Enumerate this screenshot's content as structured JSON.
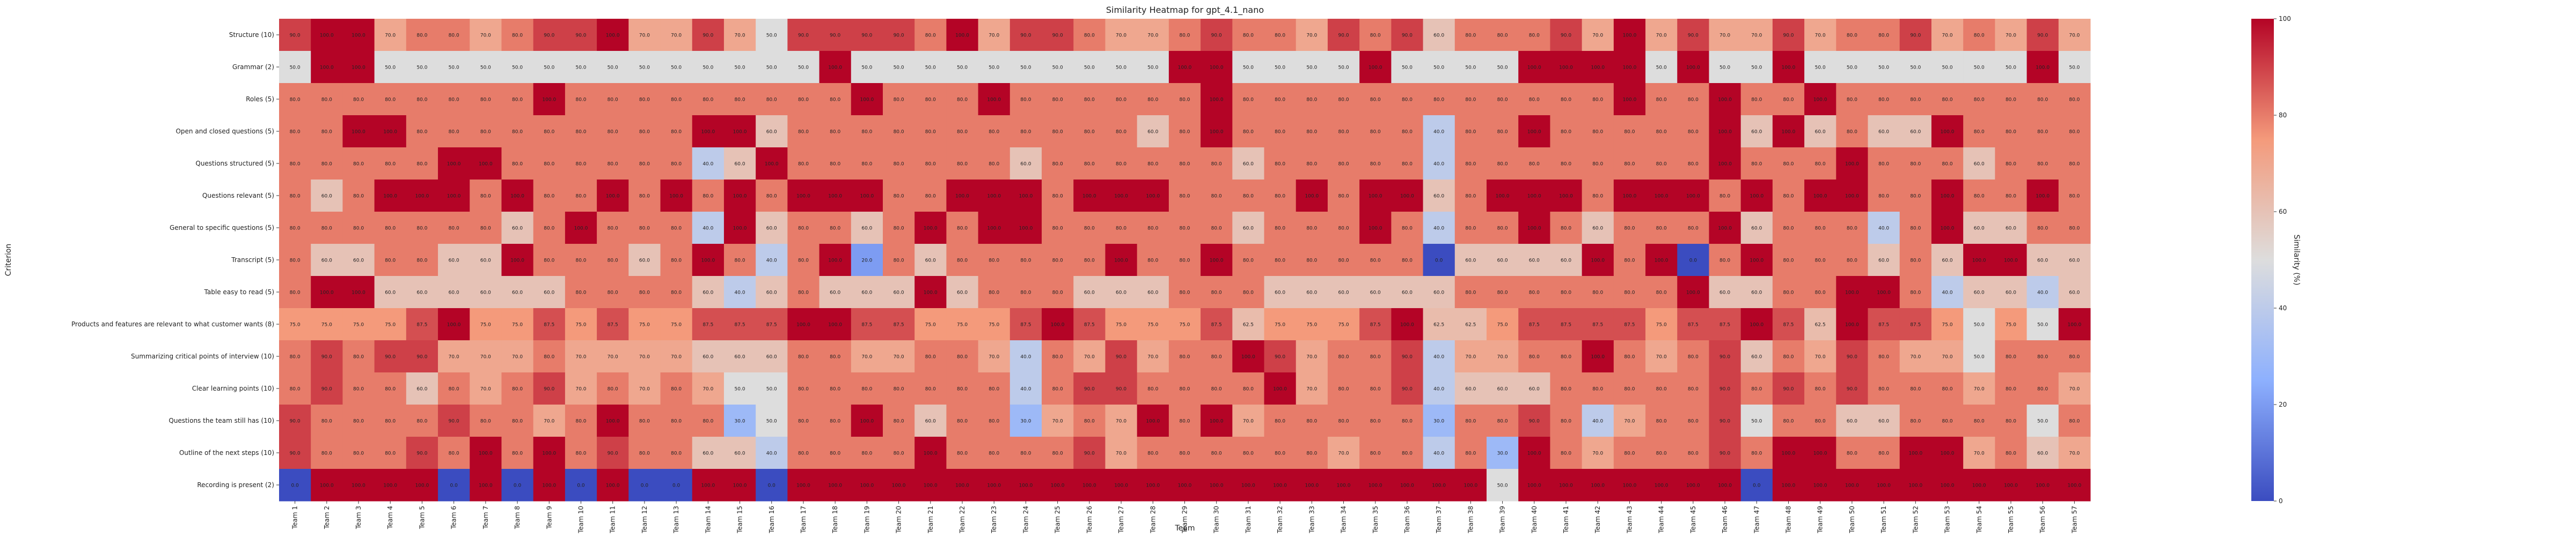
{
  "chart_data": {
    "type": "heatmap",
    "title": "Similarity Heatmap for gpt_4.1_nano",
    "xlabel": "Team",
    "ylabel": "Criterion",
    "colorbar_label": "Similarity (%)",
    "colorbar_ticks": [
      0,
      20,
      40,
      60,
      80,
      100
    ],
    "vmin": 0,
    "vmax": 100,
    "colormap": "coolwarm",
    "colors": {
      "low": "#3b4cc0",
      "mid": "#dddddd",
      "high": "#b40426"
    },
    "x": [
      "Team 1",
      "Team 2",
      "Team 3",
      "Team 4",
      "Team 5",
      "Team 6",
      "Team 7",
      "Team 8",
      "Team 9",
      "Team 10",
      "Team 11",
      "Team 12",
      "Team 13",
      "Team 14",
      "Team 15",
      "Team 16",
      "Team 17",
      "Team 18",
      "Team 19",
      "Team 20",
      "Team 21",
      "Team 22",
      "Team 23",
      "Team 24",
      "Team 25",
      "Team 26",
      "Team 27",
      "Team 28",
      "Team 29",
      "Team 30",
      "Team 31",
      "Team 32",
      "Team 33",
      "Team 34",
      "Team 35",
      "Team 36",
      "Team 37",
      "Team 38",
      "Team 39",
      "Team 40",
      "Team 41",
      "Team 42",
      "Team 43",
      "Team 44",
      "Team 45",
      "Team 46",
      "Team 47",
      "Team 48",
      "Team 49",
      "Team 50",
      "Team 51",
      "Team 52",
      "Team 53",
      "Team 54",
      "Team 55",
      "Team 56",
      "Team 57"
    ],
    "y": [
      "Structure (10)",
      "Grammar (2)",
      "Roles (5)",
      "Open and closed questions (5)",
      "Questions structured (5)",
      "Questions relevant (5)",
      "General to specific questions (5)",
      "Transcript (5)",
      "Table easy to read (5)",
      "Products and features are relevant to what customer wants (8)",
      "Summarizing critical points of interview (10)",
      "Clear learning points (10)",
      "Questions the team still has (10)",
      "Outline of the next steps (10)",
      "Recording is present (2)"
    ],
    "values": [
      [
        90.0,
        100.0,
        100.0,
        70.0,
        80.0,
        80.0,
        70.0,
        80.0,
        90.0,
        90.0,
        100.0,
        70.0,
        70.0,
        90.0,
        70.0,
        50.0,
        90.0,
        90.0,
        90.0,
        90.0,
        80.0,
        100.0,
        70.0,
        90.0,
        90.0,
        80.0,
        70.0,
        70.0,
        80.0,
        90.0,
        80.0,
        80.0,
        70.0,
        90.0,
        80.0,
        90.0,
        60.0,
        80.0,
        80.0,
        80.0,
        90.0,
        70.0,
        100.0,
        70.0,
        90.0,
        70.0,
        70.0,
        90.0,
        70.0,
        80.0,
        80.0,
        90.0,
        70.0,
        80.0,
        70.0,
        90.0,
        70.0
      ],
      [
        50.0,
        100.0,
        100.0,
        50.0,
        50.0,
        50.0,
        50.0,
        50.0,
        50.0,
        50.0,
        50.0,
        50.0,
        50.0,
        50.0,
        50.0,
        50.0,
        50.0,
        100.0,
        50.0,
        50.0,
        50.0,
        50.0,
        50.0,
        50.0,
        50.0,
        50.0,
        50.0,
        50.0,
        100.0,
        100.0,
        50.0,
        50.0,
        50.0,
        50.0,
        100.0,
        50.0,
        50.0,
        50.0,
        50.0,
        100.0,
        100.0,
        100.0,
        100.0,
        50.0,
        100.0,
        50.0,
        50.0,
        100.0,
        50.0,
        50.0,
        50.0,
        50.0,
        50.0,
        50.0,
        50.0,
        100.0,
        50.0
      ],
      [
        80.0,
        80.0,
        80.0,
        80.0,
        80.0,
        80.0,
        80.0,
        80.0,
        100.0,
        80.0,
        80.0,
        80.0,
        80.0,
        80.0,
        80.0,
        80.0,
        80.0,
        80.0,
        100.0,
        80.0,
        80.0,
        80.0,
        100.0,
        80.0,
        80.0,
        80.0,
        80.0,
        80.0,
        80.0,
        100.0,
        80.0,
        80.0,
        80.0,
        80.0,
        80.0,
        80.0,
        80.0,
        80.0,
        80.0,
        80.0,
        80.0,
        80.0,
        100.0,
        80.0,
        80.0,
        100.0,
        80.0,
        80.0,
        100.0,
        80.0,
        80.0,
        80.0,
        80.0,
        80.0,
        80.0,
        80.0,
        80.0
      ],
      [
        80.0,
        80.0,
        100.0,
        100.0,
        80.0,
        80.0,
        80.0,
        80.0,
        80.0,
        80.0,
        80.0,
        80.0,
        80.0,
        100.0,
        100.0,
        60.0,
        80.0,
        80.0,
        80.0,
        80.0,
        80.0,
        80.0,
        80.0,
        80.0,
        80.0,
        80.0,
        80.0,
        60.0,
        80.0,
        100.0,
        80.0,
        80.0,
        80.0,
        80.0,
        80.0,
        80.0,
        40.0,
        80.0,
        80.0,
        100.0,
        80.0,
        80.0,
        80.0,
        80.0,
        80.0,
        100.0,
        60.0,
        100.0,
        60.0,
        80.0,
        60.0,
        60.0,
        100.0,
        80.0,
        80.0,
        80.0,
        80.0
      ],
      [
        80.0,
        80.0,
        80.0,
        80.0,
        80.0,
        100.0,
        100.0,
        80.0,
        80.0,
        80.0,
        80.0,
        80.0,
        80.0,
        40.0,
        60.0,
        100.0,
        80.0,
        80.0,
        80.0,
        80.0,
        80.0,
        80.0,
        80.0,
        60.0,
        80.0,
        80.0,
        80.0,
        80.0,
        80.0,
        80.0,
        60.0,
        80.0,
        80.0,
        80.0,
        80.0,
        80.0,
        40.0,
        80.0,
        80.0,
        80.0,
        80.0,
        80.0,
        80.0,
        80.0,
        80.0,
        100.0,
        80.0,
        80.0,
        80.0,
        100.0,
        80.0,
        80.0,
        80.0,
        60.0,
        80.0,
        80.0,
        80.0
      ],
      [
        80.0,
        60.0,
        80.0,
        100.0,
        100.0,
        100.0,
        80.0,
        100.0,
        80.0,
        80.0,
        100.0,
        80.0,
        100.0,
        80.0,
        100.0,
        80.0,
        100.0,
        100.0,
        100.0,
        80.0,
        80.0,
        100.0,
        100.0,
        100.0,
        80.0,
        100.0,
        100.0,
        100.0,
        80.0,
        80.0,
        80.0,
        80.0,
        100.0,
        80.0,
        100.0,
        100.0,
        60.0,
        80.0,
        100.0,
        100.0,
        100.0,
        80.0,
        100.0,
        100.0,
        100.0,
        80.0,
        100.0,
        80.0,
        100.0,
        100.0,
        80.0,
        80.0,
        100.0,
        80.0,
        80.0,
        100.0,
        80.0
      ],
      [
        80.0,
        80.0,
        80.0,
        80.0,
        80.0,
        80.0,
        80.0,
        60.0,
        80.0,
        100.0,
        80.0,
        80.0,
        80.0,
        40.0,
        100.0,
        60.0,
        80.0,
        80.0,
        60.0,
        80.0,
        100.0,
        80.0,
        100.0,
        100.0,
        80.0,
        80.0,
        80.0,
        80.0,
        80.0,
        80.0,
        60.0,
        80.0,
        80.0,
        80.0,
        100.0,
        80.0,
        40.0,
        80.0,
        80.0,
        100.0,
        80.0,
        60.0,
        80.0,
        80.0,
        80.0,
        100.0,
        60.0,
        80.0,
        80.0,
        80.0,
        40.0,
        80.0,
        100.0,
        60.0,
        60.0,
        80.0,
        80.0
      ],
      [
        80.0,
        60.0,
        60.0,
        80.0,
        80.0,
        60.0,
        60.0,
        100.0,
        80.0,
        80.0,
        80.0,
        60.0,
        80.0,
        100.0,
        80.0,
        40.0,
        80.0,
        100.0,
        20.0,
        80.0,
        60.0,
        80.0,
        80.0,
        80.0,
        80.0,
        80.0,
        100.0,
        80.0,
        80.0,
        100.0,
        80.0,
        80.0,
        80.0,
        80.0,
        80.0,
        80.0,
        0.0,
        60.0,
        60.0,
        60.0,
        60.0,
        100.0,
        80.0,
        100.0,
        0.0,
        80.0,
        100.0,
        80.0,
        80.0,
        80.0,
        60.0,
        80.0,
        60.0,
        100.0,
        100.0,
        60.0,
        60.0
      ],
      [
        80.0,
        100.0,
        100.0,
        60.0,
        60.0,
        60.0,
        60.0,
        60.0,
        60.0,
        80.0,
        80.0,
        80.0,
        80.0,
        60.0,
        40.0,
        60.0,
        80.0,
        60.0,
        60.0,
        60.0,
        100.0,
        60.0,
        80.0,
        80.0,
        80.0,
        60.0,
        60.0,
        60.0,
        80.0,
        80.0,
        80.0,
        60.0,
        60.0,
        60.0,
        60.0,
        60.0,
        60.0,
        80.0,
        80.0,
        80.0,
        80.0,
        80.0,
        80.0,
        80.0,
        100.0,
        60.0,
        60.0,
        80.0,
        80.0,
        100.0,
        100.0,
        80.0,
        40.0,
        60.0,
        60.0,
        40.0,
        60.0
      ],
      [
        75.0,
        75.0,
        75.0,
        75.0,
        87.5,
        100.0,
        75.0,
        75.0,
        87.5,
        75.0,
        87.5,
        75.0,
        75.0,
        87.5,
        87.5,
        87.5,
        100.0,
        100.0,
        87.5,
        87.5,
        75.0,
        75.0,
        75.0,
        87.5,
        100.0,
        87.5,
        75.0,
        75.0,
        75.0,
        87.5,
        62.5,
        75.0,
        75.0,
        75.0,
        87.5,
        100.0,
        62.5,
        62.5,
        75.0,
        87.5,
        87.5,
        87.5,
        87.5,
        75.0,
        87.5,
        87.5,
        100.0,
        87.5,
        62.5,
        100.0,
        87.5,
        87.5,
        75.0,
        50.0,
        75.0,
        50.0,
        100.0
      ],
      [
        80.0,
        90.0,
        80.0,
        90.0,
        90.0,
        70.0,
        70.0,
        70.0,
        80.0,
        70.0,
        70.0,
        70.0,
        70.0,
        60.0,
        60.0,
        60.0,
        80.0,
        80.0,
        70.0,
        70.0,
        80.0,
        80.0,
        70.0,
        40.0,
        80.0,
        70.0,
        90.0,
        70.0,
        80.0,
        80.0,
        100.0,
        90.0,
        70.0,
        80.0,
        80.0,
        90.0,
        40.0,
        70.0,
        70.0,
        80.0,
        80.0,
        100.0,
        80.0,
        70.0,
        80.0,
        90.0,
        60.0,
        80.0,
        70.0,
        90.0,
        80.0,
        70.0,
        70.0,
        50.0,
        80.0,
        80.0,
        80.0
      ],
      [
        80.0,
        90.0,
        80.0,
        80.0,
        60.0,
        80.0,
        70.0,
        80.0,
        90.0,
        70.0,
        80.0,
        70.0,
        80.0,
        70.0,
        50.0,
        50.0,
        80.0,
        80.0,
        80.0,
        80.0,
        80.0,
        80.0,
        80.0,
        40.0,
        80.0,
        90.0,
        90.0,
        80.0,
        80.0,
        80.0,
        80.0,
        100.0,
        70.0,
        80.0,
        80.0,
        90.0,
        40.0,
        60.0,
        60.0,
        60.0,
        80.0,
        80.0,
        80.0,
        80.0,
        80.0,
        90.0,
        80.0,
        90.0,
        80.0,
        90.0,
        80.0,
        80.0,
        80.0,
        70.0,
        80.0,
        80.0,
        70.0
      ],
      [
        90.0,
        80.0,
        80.0,
        80.0,
        80.0,
        90.0,
        80.0,
        80.0,
        70.0,
        80.0,
        100.0,
        80.0,
        80.0,
        80.0,
        30.0,
        50.0,
        80.0,
        80.0,
        100.0,
        80.0,
        60.0,
        80.0,
        80.0,
        30.0,
        70.0,
        80.0,
        70.0,
        100.0,
        80.0,
        100.0,
        70.0,
        80.0,
        80.0,
        80.0,
        80.0,
        80.0,
        30.0,
        80.0,
        80.0,
        90.0,
        80.0,
        40.0,
        70.0,
        80.0,
        80.0,
        90.0,
        50.0,
        80.0,
        80.0,
        60.0,
        60.0,
        80.0,
        80.0,
        80.0,
        80.0,
        50.0,
        80.0
      ],
      [
        90.0,
        80.0,
        80.0,
        80.0,
        90.0,
        80.0,
        100.0,
        80.0,
        100.0,
        80.0,
        90.0,
        80.0,
        80.0,
        60.0,
        60.0,
        40.0,
        80.0,
        80.0,
        80.0,
        80.0,
        100.0,
        80.0,
        80.0,
        80.0,
        80.0,
        90.0,
        70.0,
        80.0,
        80.0,
        80.0,
        80.0,
        80.0,
        80.0,
        70.0,
        80.0,
        80.0,
        40.0,
        80.0,
        30.0,
        100.0,
        80.0,
        70.0,
        80.0,
        80.0,
        80.0,
        90.0,
        80.0,
        100.0,
        100.0,
        80.0,
        80.0,
        100.0,
        100.0,
        70.0,
        80.0,
        60.0,
        70.0
      ],
      [
        0.0,
        100.0,
        100.0,
        100.0,
        100.0,
        0.0,
        100.0,
        0.0,
        100.0,
        0.0,
        100.0,
        0.0,
        0.0,
        100.0,
        100.0,
        0.0,
        100.0,
        100.0,
        100.0,
        100.0,
        100.0,
        100.0,
        100.0,
        100.0,
        100.0,
        100.0,
        100.0,
        100.0,
        100.0,
        100.0,
        100.0,
        100.0,
        100.0,
        100.0,
        100.0,
        100.0,
        100.0,
        100.0,
        50.0,
        100.0,
        100.0,
        100.0,
        100.0,
        100.0,
        100.0,
        100.0,
        0.0,
        100.0,
        100.0,
        100.0,
        100.0,
        100.0,
        100.0,
        100.0,
        100.0,
        100.0,
        100.0
      ]
    ]
  }
}
